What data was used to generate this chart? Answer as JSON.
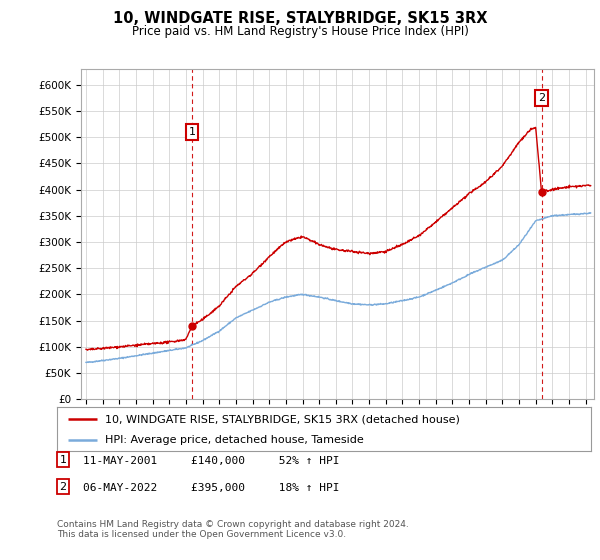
{
  "title": "10, WINDGATE RISE, STALYBRIDGE, SK15 3RX",
  "subtitle": "Price paid vs. HM Land Registry's House Price Index (HPI)",
  "ylabel_ticks": [
    "£0",
    "£50K",
    "£100K",
    "£150K",
    "£200K",
    "£250K",
    "£300K",
    "£350K",
    "£400K",
    "£450K",
    "£500K",
    "£550K",
    "£600K"
  ],
  "ytick_values": [
    0,
    50000,
    100000,
    150000,
    200000,
    250000,
    300000,
    350000,
    400000,
    450000,
    500000,
    550000,
    600000
  ],
  "xlim_start": 1994.7,
  "xlim_end": 2025.5,
  "ylim": [
    0,
    630000
  ],
  "hpi_color": "#7aabdb",
  "price_color": "#cc0000",
  "marker1_date": 2001.36,
  "marker1_price": 140000,
  "marker2_date": 2022.35,
  "marker2_price": 395000,
  "legend_line1": "10, WINDGATE RISE, STALYBRIDGE, SK15 3RX (detached house)",
  "legend_line2": "HPI: Average price, detached house, Tameside",
  "annotation1_text": "11-MAY-2001     £140,000     52% ↑ HPI",
  "annotation2_text": "06-MAY-2022     £395,000     18% ↑ HPI",
  "footer": "Contains HM Land Registry data © Crown copyright and database right 2024.\nThis data is licensed under the Open Government Licence v3.0.",
  "background_color": "#ffffff",
  "grid_color": "#cccccc"
}
